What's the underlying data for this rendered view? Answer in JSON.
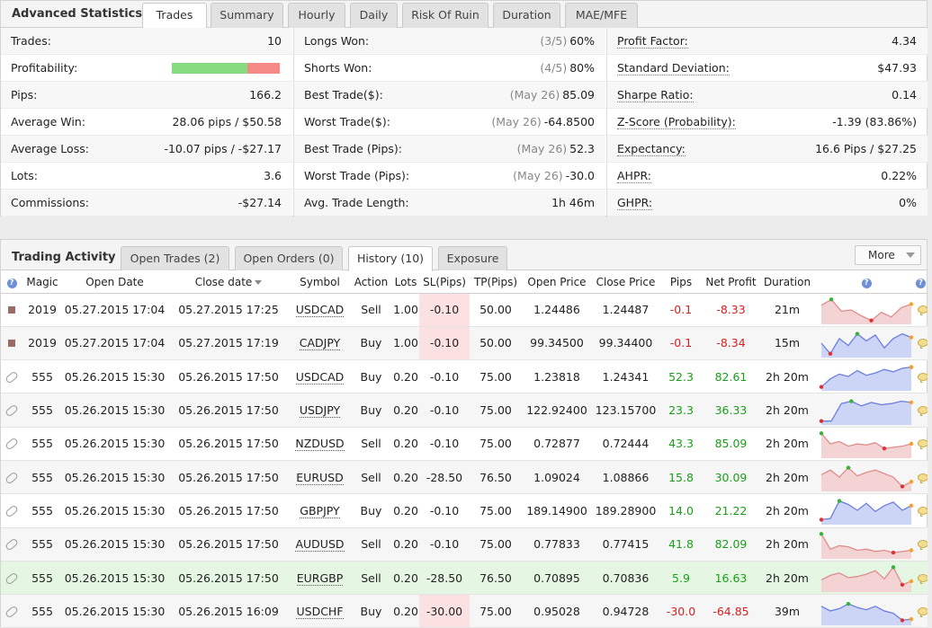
{
  "stats": {
    "title": "Advanced Statistics",
    "tabs": [
      "Trades",
      "Summary",
      "Hourly",
      "Daily",
      "Risk Of Ruin",
      "Duration",
      "MAE/MFE"
    ],
    "profitability_bar": {
      "won_fraction": 0.7
    },
    "col1": [
      {
        "label": "Trades:",
        "value": "10"
      },
      {
        "label": "Profitability:",
        "value": ""
      },
      {
        "label": "Pips:",
        "value": "166.2"
      },
      {
        "label": "Average Win:",
        "value": "28.06 pips / $50.58"
      },
      {
        "label": "Average Loss:",
        "value": "-10.07 pips / -$27.17"
      },
      {
        "label": "Lots:",
        "value": "3.6"
      },
      {
        "label": "Commissions:",
        "value": "-$27.14"
      }
    ],
    "col2": [
      {
        "label": "Longs Won:",
        "note": "(3/5)",
        "value": "60%"
      },
      {
        "label": "Shorts Won:",
        "note": "(4/5)",
        "value": "80%"
      },
      {
        "label": "Best Trade($):",
        "note": "(May 26)",
        "value": "85.09"
      },
      {
        "label": "Worst Trade($):",
        "note": "(May 26)",
        "value": "-64.8500"
      },
      {
        "label": "Best Trade (Pips):",
        "note": "(May 26)",
        "value": "52.3"
      },
      {
        "label": "Worst Trade (Pips):",
        "note": "(May 26)",
        "value": "-30.0"
      },
      {
        "label": "Avg. Trade Length:",
        "note": "",
        "value": "1h 46m"
      }
    ],
    "col3": [
      {
        "label": "Profit Factor:",
        "value": "4.34"
      },
      {
        "label": "Standard Deviation:",
        "value": "$47.93"
      },
      {
        "label": "Sharpe Ratio:",
        "value": "0.14"
      },
      {
        "label": "Z-Score (Probability):",
        "value": "-1.39 (83.86%)"
      },
      {
        "label": "Expectancy:",
        "value": "16.6 Pips / $27.25"
      },
      {
        "label": "AHPR:",
        "value": "0.22%"
      },
      {
        "label": "GHPR:",
        "value": "0%"
      }
    ]
  },
  "activity": {
    "title": "Trading Activity",
    "tabs": [
      "Open Trades (2)",
      "Open Orders (0)",
      "History (10)",
      "Exposure"
    ],
    "more_label": "More",
    "headers": {
      "magic": "Magic",
      "open_date": "Open Date",
      "close_date": "Close date",
      "symbol": "Symbol",
      "action": "Action",
      "lots": "Lots",
      "sl": "SL(Pips)",
      "tp": "TP(Pips)",
      "open_price": "Open Price",
      "close_price": "Close Price",
      "pips": "Pips",
      "net_profit": "Net Profit",
      "duration": "Duration"
    },
    "rows": [
      {
        "icon": "square",
        "magic": "2019",
        "open_date": "05.27.2015 17:04",
        "close_date": "05.27.2015 17:25",
        "symbol": "USDCAD",
        "action": "Sell",
        "lots": "1.00",
        "sl": "-0.10",
        "sl_hit": true,
        "tp": "50.00",
        "open_price": "1.24486",
        "close_price": "1.24487",
        "pips": "-0.1",
        "net_profit": "-8.33",
        "duration": "21m",
        "spark": [
          0.3,
          0.05,
          0.55,
          0.5,
          0.75,
          0.95,
          0.6,
          0.8,
          0.4,
          0.25
        ]
      },
      {
        "icon": "square",
        "magic": "2019",
        "open_date": "05.27.2015 17:04",
        "close_date": "05.27.2015 17:19",
        "symbol": "CADJPY",
        "action": "Buy",
        "lots": "1.00",
        "sl": "-0.10",
        "sl_hit": true,
        "tp": "50.00",
        "open_price": "99.34500",
        "close_price": "99.34400",
        "pips": "-0.1",
        "net_profit": "-8.34",
        "duration": "15m",
        "spark": [
          0.5,
          0.95,
          0.3,
          0.6,
          0.1,
          0.4,
          0.15,
          0.7,
          0.3,
          0.1,
          0.25
        ]
      },
      {
        "icon": "clip",
        "magic": "555",
        "open_date": "05.26.2015 15:30",
        "close_date": "05.26.2015 17:50",
        "symbol": "USDCAD",
        "action": "Buy",
        "lots": "0.20",
        "sl": "-0.10",
        "sl_hit": false,
        "tp": "75.00",
        "open_price": "1.23818",
        "close_price": "1.24341",
        "pips": "52.3",
        "net_profit": "82.61",
        "duration": "2h 20m",
        "spark": [
          0.95,
          0.6,
          0.4,
          0.5,
          0.25,
          0.45,
          0.35,
          0.2,
          0.3,
          0.15,
          0.1
        ]
      },
      {
        "icon": "clip",
        "magic": "555",
        "open_date": "05.26.2015 15:30",
        "close_date": "05.26.2015 17:50",
        "symbol": "USDJPY",
        "action": "Buy",
        "lots": "0.20",
        "sl": "-0.10",
        "sl_hit": false,
        "tp": "75.00",
        "open_price": "122.92400",
        "close_price": "123.15700",
        "pips": "23.3",
        "net_profit": "36.33",
        "duration": "2h 20m",
        "spark": [
          0.95,
          0.95,
          0.2,
          0.1,
          0.3,
          0.15,
          0.25,
          0.2,
          0.1,
          0.15
        ]
      },
      {
        "icon": "clip",
        "magic": "555",
        "open_date": "05.26.2015 15:30",
        "close_date": "05.26.2015 17:50",
        "symbol": "NZDUSD",
        "action": "Sell",
        "lots": "0.20",
        "sl": "-0.10",
        "sl_hit": false,
        "tp": "75.00",
        "open_price": "0.72877",
        "close_price": "0.72444",
        "pips": "43.3",
        "net_profit": "85.09",
        "duration": "2h 20m",
        "spark": [
          0.05,
          0.5,
          0.4,
          0.6,
          0.5,
          0.55,
          0.45,
          0.7,
          0.65,
          0.6,
          0.5
        ]
      },
      {
        "icon": "clip",
        "magic": "555",
        "open_date": "05.26.2015 15:30",
        "close_date": "05.26.2015 17:50",
        "symbol": "EURUSD",
        "action": "Sell",
        "lots": "0.20",
        "sl": "-28.50",
        "sl_hit": false,
        "tp": "76.50",
        "open_price": "1.09024",
        "close_price": "1.08866",
        "pips": "15.8",
        "net_profit": "30.09",
        "duration": "2h 20m",
        "spark": [
          0.4,
          0.2,
          0.5,
          0.1,
          0.45,
          0.3,
          0.2,
          0.35,
          0.5,
          0.9,
          0.7
        ]
      },
      {
        "icon": "clip",
        "magic": "555",
        "open_date": "05.26.2015 15:30",
        "close_date": "05.26.2015 17:50",
        "symbol": "GBPJPY",
        "action": "Buy",
        "lots": "0.20",
        "sl": "-0.10",
        "sl_hit": false,
        "tp": "75.00",
        "open_price": "189.14900",
        "close_price": "189.28900",
        "pips": "14.0",
        "net_profit": "21.22",
        "duration": "2h 20m",
        "spark": [
          0.9,
          0.85,
          0.1,
          0.25,
          0.5,
          0.2,
          0.55,
          0.3,
          0.15,
          0.5,
          0.3
        ]
      },
      {
        "icon": "clip",
        "magic": "555",
        "open_date": "05.26.2015 15:30",
        "close_date": "05.26.2015 17:50",
        "symbol": "AUDUSD",
        "action": "Sell",
        "lots": "0.20",
        "sl": "-0.10",
        "sl_hit": false,
        "tp": "75.00",
        "open_price": "0.77833",
        "close_price": "0.77415",
        "pips": "41.8",
        "net_profit": "82.09",
        "duration": "2h 20m",
        "spark": [
          0.05,
          0.7,
          0.55,
          0.6,
          0.75,
          0.7,
          0.8,
          0.75,
          0.85,
          0.8,
          0.75
        ]
      },
      {
        "icon": "clip",
        "magic": "555",
        "open_date": "05.26.2015 15:30",
        "close_date": "05.26.2015 17:50",
        "symbol": "EURGBP",
        "action": "Sell",
        "lots": "0.20",
        "sl": "-28.50",
        "sl_hit": false,
        "tp": "76.50",
        "open_price": "0.70895",
        "close_price": "0.70836",
        "pips": "5.9",
        "net_profit": "16.63",
        "duration": "2h 20m",
        "spark": [
          0.6,
          0.4,
          0.3,
          0.5,
          0.45,
          0.35,
          0.2,
          0.55,
          0.05,
          0.8,
          0.65
        ]
      },
      {
        "icon": "clip",
        "magic": "555",
        "open_date": "05.26.2015 15:30",
        "close_date": "05.26.2015 16:09",
        "symbol": "USDCHF",
        "action": "Buy",
        "lots": "0.20",
        "sl": "-30.00",
        "sl_hit": true,
        "tp": "75.00",
        "open_price": "0.95028",
        "close_price": "0.94728",
        "pips": "-30.0",
        "net_profit": "-64.85",
        "duration": "39m",
        "spark": [
          0.3,
          0.5,
          0.4,
          0.2,
          0.35,
          0.45,
          0.3,
          0.5,
          0.6,
          0.9,
          0.85
        ]
      }
    ]
  }
}
